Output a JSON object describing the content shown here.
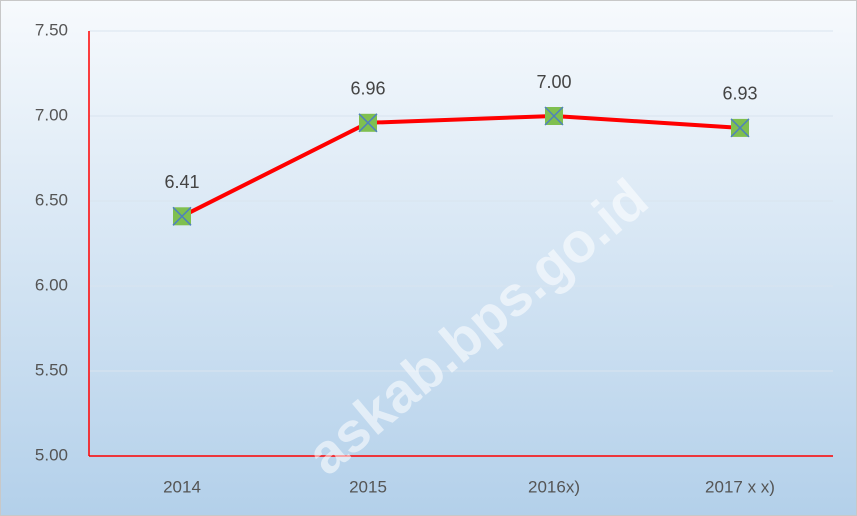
{
  "chart_data": {
    "type": "line",
    "categories": [
      "2014",
      "2015",
      "2016x)",
      "2017 x x)"
    ],
    "series": [
      {
        "color": "#ff0000",
        "marker_color": "#7fbf4f",
        "marker_cross_color": "#4f81bd",
        "values": [
          6.41,
          6.96,
          7.0,
          6.93
        ],
        "value_labels": [
          "6.41",
          "6.96",
          "7.00",
          "6.93"
        ]
      }
    ],
    "ylim": [
      5.0,
      7.5
    ],
    "yticks": [
      {
        "value": 5.0,
        "label": "5.00"
      },
      {
        "value": 5.5,
        "label": "5.50"
      },
      {
        "value": 6.0,
        "label": "6.00"
      },
      {
        "value": 6.5,
        "label": "6.50"
      },
      {
        "value": 7.0,
        "label": "7.00"
      },
      {
        "value": 7.5,
        "label": "7.50"
      }
    ],
    "grid": true,
    "axis_color": "#ff0000",
    "watermark": "askab.bps.go.id"
  }
}
